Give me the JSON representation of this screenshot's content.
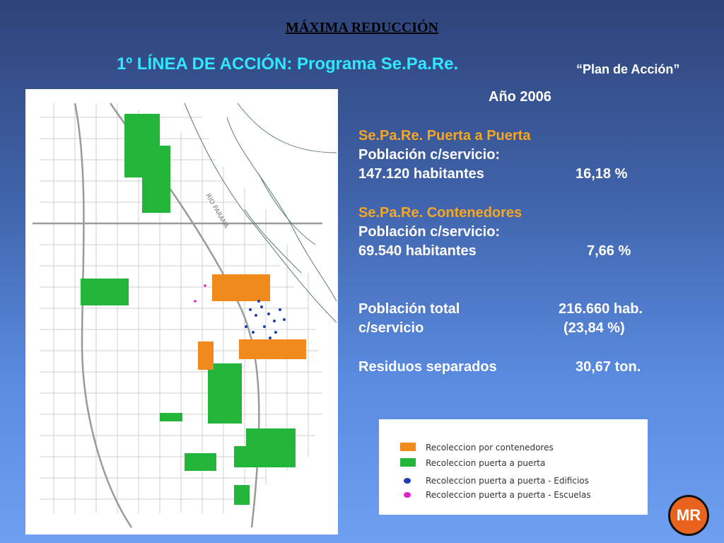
{
  "header": {
    "title": "MÁXIMA REDUCCIÓN",
    "subtitle": "1º LÍNEA DE ACCIÓN: Programa Se.Pa.Re.",
    "plan": "“Plan de Acción”"
  },
  "info": {
    "year": "Año 2006",
    "puerta": {
      "heading": "Se.Pa.Re. Puerta a Puerta",
      "label": "Población c/servicio:",
      "habitantes": "147.120 habitantes",
      "percent": "16,18 %"
    },
    "contenedores": {
      "heading": "Se.Pa.Re. Contenedores",
      "label": "Población c/servicio:",
      "habitantes": "69.540 habitantes",
      "percent": "7,66 %"
    },
    "total": {
      "label1": "Población total",
      "label2": "c/servicio",
      "value": "216.660 hab.",
      "percent": "(23,84 %)"
    },
    "residuos": {
      "label": "Residuos separados",
      "value": "30,67 ton."
    }
  },
  "legend": {
    "items": [
      {
        "label": "Recoleccion por contenedores",
        "color": "#f08a1c"
      },
      {
        "label": "Recoleccion puerta a puerta",
        "color": "#22b53a"
      },
      {
        "label": "Recoleccion puerta a puerta - Edificios",
        "color": "#1f3fb0"
      },
      {
        "label": "Recoleccion puerta a puerta - Escuelas",
        "color": "#e020c8"
      }
    ]
  },
  "map": {
    "river_label": "RIO PARANA"
  },
  "logo": {
    "text": "MR"
  }
}
